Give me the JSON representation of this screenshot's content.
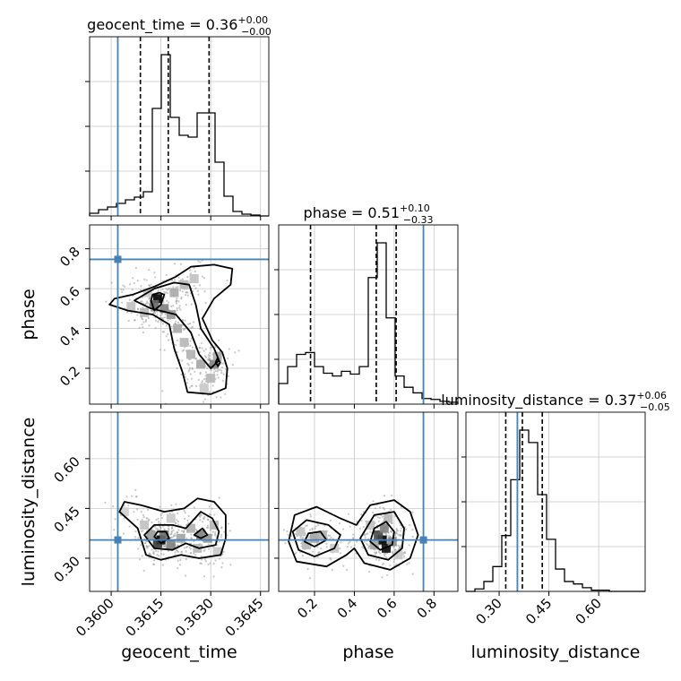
{
  "chart_data": {
    "type": "corner",
    "parameters": [
      "geocent_time",
      "phase",
      "luminosity_distance"
    ],
    "truths": {
      "geocent_time": 0.3602,
      "phase": 0.747,
      "luminosity_distance": 0.355
    },
    "truth_color": "#4682b4",
    "titles": {
      "geocent_time": {
        "prefix": "geocent_time = ",
        "value": "0.36",
        "plus": "+0.00",
        "minus": "−0.00"
      },
      "phase": {
        "prefix": "phase = ",
        "value": "0.51",
        "plus": "+0.10",
        "minus": "−0.33"
      },
      "luminosity_distance": {
        "prefix": "luminosity_distance = ",
        "value": "0.37",
        "plus": "+0.06",
        "minus": "−0.05"
      }
    },
    "axes": {
      "geocent_time": {
        "range": [
          0.35935,
          0.36475
        ],
        "ticks": [
          0.36,
          0.3615,
          0.363,
          0.3645
        ],
        "tick_labels": [
          "0.3600",
          "0.3615",
          "0.3630",
          "0.3645"
        ]
      },
      "phase": {
        "range": [
          0.02,
          0.92
        ],
        "ticks": [
          0.2,
          0.4,
          0.6,
          0.8
        ],
        "tick_labels": [
          "0.2",
          "0.4",
          "0.6",
          "0.8"
        ]
      },
      "luminosity_distance": {
        "range": [
          0.2,
          0.74
        ],
        "ticks": [
          0.3,
          0.45,
          0.6
        ],
        "tick_labels": [
          "0.30",
          "0.45",
          "0.60"
        ]
      }
    },
    "axis_labels": {
      "x": [
        "geocent_time",
        "phase",
        "luminosity_distance"
      ],
      "y": [
        "phase",
        "luminosity_distance"
      ]
    },
    "histograms": {
      "geocent_time": {
        "edges": [
          0.35935,
          0.35962,
          0.35989,
          0.36016,
          0.36043,
          0.3607,
          0.36097,
          0.36124,
          0.36151,
          0.36178,
          0.36205,
          0.36232,
          0.36259,
          0.36286,
          0.36313,
          0.3634,
          0.36367,
          0.36394,
          0.36421,
          0.36448,
          0.36475
        ],
        "counts": [
          3,
          7,
          10,
          14,
          18,
          21,
          27,
          120,
          180,
          110,
          90,
          88,
          115,
          115,
          60,
          22,
          5,
          2,
          1,
          0
        ],
        "quantiles": [
          0.36088,
          0.36172,
          0.36295
        ]
      },
      "phase": {
        "edges": [
          0.02,
          0.065,
          0.11,
          0.155,
          0.2,
          0.245,
          0.29,
          0.335,
          0.38,
          0.425,
          0.47,
          0.515,
          0.56,
          0.605,
          0.65,
          0.695,
          0.74,
          0.785,
          0.83,
          0.875,
          0.92
        ],
        "counts": [
          22,
          40,
          53,
          55,
          40,
          33,
          30,
          35,
          32,
          40,
          135,
          172,
          92,
          30,
          18,
          12,
          6,
          5,
          3,
          2
        ],
        "quantiles": [
          0.18,
          0.51,
          0.61
        ]
      },
      "luminosity_distance": {
        "edges": [
          0.2,
          0.227,
          0.254,
          0.281,
          0.308,
          0.335,
          0.362,
          0.389,
          0.416,
          0.443,
          0.47,
          0.497,
          0.524,
          0.551,
          0.578,
          0.605,
          0.632,
          0.659,
          0.686,
          0.713,
          0.74
        ],
        "counts": [
          0,
          2,
          8,
          20,
          45,
          90,
          130,
          120,
          78,
          42,
          18,
          8,
          6,
          3,
          1,
          1,
          0,
          0,
          0,
          0
        ],
        "quantiles": [
          0.32,
          0.37,
          0.43
        ]
      }
    },
    "contour_panels": [
      {
        "x_param": "geocent_time",
        "y_param": "phase",
        "contours": [
          [
            [
              0.3612,
              0.54
            ],
            [
              0.3613,
              0.49
            ],
            [
              0.3615,
              0.52
            ],
            [
              0.3616,
              0.57
            ],
            [
              0.36145,
              0.58
            ],
            [
              0.36125,
              0.57
            ]
          ],
          [
            [
              0.3607,
              0.54
            ],
            [
              0.3612,
              0.5
            ],
            [
              0.36195,
              0.47
            ],
            [
              0.3624,
              0.38
            ],
            [
              0.36265,
              0.27
            ],
            [
              0.363,
              0.2
            ],
            [
              0.36325,
              0.24
            ],
            [
              0.3631,
              0.3
            ],
            [
              0.3627,
              0.4
            ],
            [
              0.36255,
              0.52
            ],
            [
              0.36235,
              0.62
            ],
            [
              0.3619,
              0.63
            ],
            [
              0.3613,
              0.6
            ]
          ],
          [
            [
              0.35995,
              0.52
            ],
            [
              0.3605,
              0.49
            ],
            [
              0.36125,
              0.47
            ],
            [
              0.36175,
              0.42
            ],
            [
              0.3619,
              0.3
            ],
            [
              0.36215,
              0.18
            ],
            [
              0.3623,
              0.08
            ],
            [
              0.363,
              0.07
            ],
            [
              0.36345,
              0.1
            ],
            [
              0.3635,
              0.2
            ],
            [
              0.36335,
              0.28
            ],
            [
              0.36305,
              0.34
            ],
            [
              0.36275,
              0.45
            ],
            [
              0.3631,
              0.55
            ],
            [
              0.3636,
              0.62
            ],
            [
              0.36365,
              0.7
            ],
            [
              0.3631,
              0.72
            ],
            [
              0.3624,
              0.71
            ],
            [
              0.36195,
              0.66
            ],
            [
              0.3613,
              0.61
            ],
            [
              0.36065,
              0.57
            ],
            [
              0.3601,
              0.55
            ]
          ],
          [
            [
              0.36315,
              0.23
            ],
            [
              0.36322,
              0.21
            ],
            [
              0.36328,
              0.23
            ],
            [
              0.3632,
              0.25
            ]
          ]
        ],
        "density": [
          [
            0.3614,
            0.55,
            1.0
          ],
          [
            0.3613,
            0.52,
            0.55
          ],
          [
            0.3616,
            0.5,
            0.45
          ],
          [
            0.3618,
            0.47,
            0.35
          ],
          [
            0.362,
            0.4,
            0.28
          ],
          [
            0.3622,
            0.33,
            0.22
          ],
          [
            0.3624,
            0.27,
            0.25
          ],
          [
            0.3627,
            0.22,
            0.3
          ],
          [
            0.363,
            0.15,
            0.22
          ],
          [
            0.3619,
            0.58,
            0.28
          ],
          [
            0.3622,
            0.62,
            0.22
          ],
          [
            0.3625,
            0.65,
            0.18
          ],
          [
            0.3606,
            0.51,
            0.18
          ],
          [
            0.361,
            0.48,
            0.22
          ],
          [
            0.3631,
            0.22,
            0.45
          ],
          [
            0.3632,
            0.26,
            0.28
          ],
          [
            0.3628,
            0.1,
            0.15
          ],
          [
            0.3611,
            0.58,
            0.15
          ]
        ]
      },
      {
        "x_param": "geocent_time",
        "y_param": "luminosity_distance",
        "contours": [
          [
            [
              0.3613,
              0.365
            ],
            [
              0.3615,
              0.345
            ],
            [
              0.36175,
              0.36
            ],
            [
              0.36165,
              0.38
            ],
            [
              0.3614,
              0.38
            ]
          ],
          [
            [
              0.3625,
              0.37
            ],
            [
              0.3627,
              0.36
            ],
            [
              0.3629,
              0.37
            ],
            [
              0.36275,
              0.39
            ]
          ],
          [
            [
              0.361,
              0.37
            ],
            [
              0.3613,
              0.33
            ],
            [
              0.36185,
              0.325
            ],
            [
              0.36225,
              0.345
            ],
            [
              0.36265,
              0.33
            ],
            [
              0.36315,
              0.34
            ],
            [
              0.36325,
              0.38
            ],
            [
              0.36305,
              0.42
            ],
            [
              0.3627,
              0.44
            ],
            [
              0.36225,
              0.39
            ],
            [
              0.36185,
              0.4
            ],
            [
              0.3613,
              0.4
            ]
          ],
          [
            [
              0.36025,
              0.44
            ],
            [
              0.3608,
              0.39
            ],
            [
              0.36105,
              0.31
            ],
            [
              0.3615,
              0.295
            ],
            [
              0.3621,
              0.31
            ],
            [
              0.36265,
              0.3
            ],
            [
              0.3633,
              0.31
            ],
            [
              0.36345,
              0.36
            ],
            [
              0.36345,
              0.43
            ],
            [
              0.3631,
              0.47
            ],
            [
              0.3626,
              0.48
            ],
            [
              0.3622,
              0.45
            ],
            [
              0.3616,
              0.44
            ],
            [
              0.3609,
              0.46
            ],
            [
              0.3604,
              0.47
            ]
          ]
        ],
        "density": [
          [
            0.3615,
            0.355,
            1.0
          ],
          [
            0.3614,
            0.345,
            0.75
          ],
          [
            0.3616,
            0.37,
            0.55
          ],
          [
            0.3618,
            0.34,
            0.45
          ],
          [
            0.3612,
            0.37,
            0.35
          ],
          [
            0.3621,
            0.36,
            0.3
          ],
          [
            0.3627,
            0.37,
            0.45
          ],
          [
            0.3629,
            0.36,
            0.35
          ],
          [
            0.3624,
            0.39,
            0.25
          ],
          [
            0.3626,
            0.33,
            0.22
          ],
          [
            0.361,
            0.4,
            0.18
          ],
          [
            0.3631,
            0.4,
            0.22
          ],
          [
            0.3632,
            0.32,
            0.15
          ],
          [
            0.3604,
            0.44,
            0.12
          ],
          [
            0.3618,
            0.42,
            0.15
          ]
        ]
      },
      {
        "x_param": "phase",
        "y_param": "luminosity_distance",
        "contours": [
          [
            [
              0.15,
              0.35
            ],
            [
              0.2,
              0.335
            ],
            [
              0.26,
              0.355
            ],
            [
              0.23,
              0.38
            ],
            [
              0.17,
              0.375
            ]
          ],
          [
            [
              0.48,
              0.35
            ],
            [
              0.53,
              0.325
            ],
            [
              0.59,
              0.34
            ],
            [
              0.6,
              0.38
            ],
            [
              0.56,
              0.41
            ],
            [
              0.5,
              0.39
            ]
          ],
          [
            [
              0.09,
              0.38
            ],
            [
              0.12,
              0.325
            ],
            [
              0.2,
              0.305
            ],
            [
              0.3,
              0.33
            ],
            [
              0.33,
              0.37
            ],
            [
              0.27,
              0.4
            ],
            [
              0.16,
              0.415
            ]
          ],
          [
            [
              0.43,
              0.36
            ],
            [
              0.47,
              0.31
            ],
            [
              0.57,
              0.295
            ],
            [
              0.64,
              0.33
            ],
            [
              0.65,
              0.39
            ],
            [
              0.6,
              0.44
            ],
            [
              0.5,
              0.43
            ]
          ],
          [
            [
              0.07,
              0.35
            ],
            [
              0.11,
              0.29
            ],
            [
              0.26,
              0.275
            ],
            [
              0.36,
              0.31
            ],
            [
              0.4,
              0.33
            ],
            [
              0.45,
              0.285
            ],
            [
              0.58,
              0.265
            ],
            [
              0.68,
              0.3
            ],
            [
              0.72,
              0.37
            ],
            [
              0.68,
              0.44
            ],
            [
              0.6,
              0.475
            ],
            [
              0.48,
              0.46
            ],
            [
              0.41,
              0.4
            ],
            [
              0.33,
              0.42
            ],
            [
              0.21,
              0.455
            ],
            [
              0.1,
              0.43
            ]
          ]
        ],
        "density": [
          [
            0.54,
            0.355,
            1.0
          ],
          [
            0.56,
            0.33,
            0.95
          ],
          [
            0.52,
            0.37,
            0.7
          ],
          [
            0.55,
            0.39,
            0.45
          ],
          [
            0.59,
            0.35,
            0.4
          ],
          [
            0.5,
            0.34,
            0.3
          ],
          [
            0.2,
            0.36,
            0.3
          ],
          [
            0.16,
            0.34,
            0.22
          ],
          [
            0.24,
            0.37,
            0.25
          ],
          [
            0.57,
            0.42,
            0.22
          ],
          [
            0.48,
            0.4,
            0.18
          ],
          [
            0.13,
            0.38,
            0.18
          ],
          [
            0.3,
            0.33,
            0.15
          ],
          [
            0.62,
            0.31,
            0.15
          ]
        ]
      }
    ]
  }
}
